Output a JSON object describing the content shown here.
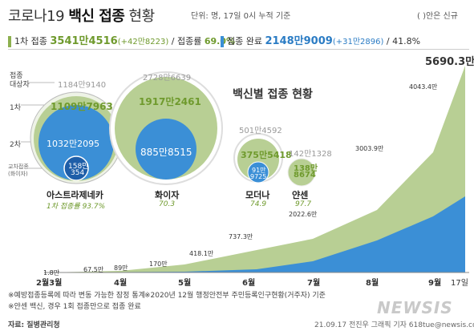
{
  "header": {
    "title_prefix": "코로나19 ",
    "title_bold": "백신 접종",
    "title_suffix": " 현황",
    "unit": "단위: 명, 17일 0시 누적 기준",
    "new_legend": "( )안은 신규"
  },
  "stats": {
    "first_label": "1차 접종",
    "first_total": "3541만4516",
    "first_new": "(+42만8223)",
    "first_rate_label": "/ 접종률",
    "first_rate": "69.0%",
    "complete_label": "접종 완료",
    "complete_total": "2148만9009",
    "complete_new": "(+31만2896)",
    "complete_rate": "/ 41.8%"
  },
  "bubble_title": "백신별 접종 현황",
  "row_labels": {
    "target": "접종\n대상자",
    "first": "1차",
    "second": "2차",
    "cross": "교차접종\n(화이자)"
  },
  "vaccines": [
    {
      "name": "아스트라제네카",
      "target": "1184만9140",
      "first": "1109만7963",
      "second": "1032만2095",
      "cross_a": "158만",
      "cross_b": "354",
      "note": "1차 접종률 93.7%"
    },
    {
      "name": "화이자",
      "target": "2728만6639",
      "first": "1917만2461",
      "second": "885만8515",
      "note": "70.3"
    },
    {
      "name": "모더나",
      "target": "501만4592",
      "first": "375만5418",
      "second_a": "91만",
      "second_b": "9725",
      "note": "74.9"
    },
    {
      "name": "얀센",
      "target": "142만1328",
      "first_a": "138만",
      "first_b": "8674",
      "note": "97.7"
    }
  ],
  "chart_data": {
    "type": "area",
    "x_ticks": [
      "2월3월",
      "4월",
      "5월",
      "6월",
      "7월",
      "8월",
      "9월",
      "17일"
    ],
    "series": [
      {
        "name": "1차 접종",
        "color": "#b8cf94"
      },
      {
        "name": "접종 완료",
        "color": "#3b8fd6"
      }
    ],
    "annotations": [
      {
        "date": "2021-03-01",
        "label": "1.8만"
      },
      {
        "date": "2021-03-20",
        "label": "67.5만"
      },
      {
        "date": "2021-04-01",
        "label": "89만"
      },
      {
        "date": "2021-04-20",
        "label": "170만"
      },
      {
        "date": "2021-05-10",
        "label": "418.1만"
      },
      {
        "date": "2021-06-01",
        "label": "737.3만"
      },
      {
        "date": "2021-07-01",
        "label": "2022.6만"
      },
      {
        "date": "2021-08-01",
        "label": "3003.9만"
      },
      {
        "date": "2021-08-25",
        "label": "4043.4만"
      },
      {
        "date": "2021-09-17",
        "label": "5690.3만"
      }
    ]
  },
  "footer": {
    "note1": "※예방접종등록에 따라 변동 가능한 잠정 통계",
    "note2": "※2020년 12월 행정안전부 주민등록인구현황(거주자) 기준",
    "note3": "※얀센 백신, 경우 1회 접종만으로 접종 완료",
    "source": "자료: 질병관리청",
    "credit": "21.09.17 전진우 그래픽 기자 618tue@newsis.com",
    "logo": "NEWSIS"
  }
}
